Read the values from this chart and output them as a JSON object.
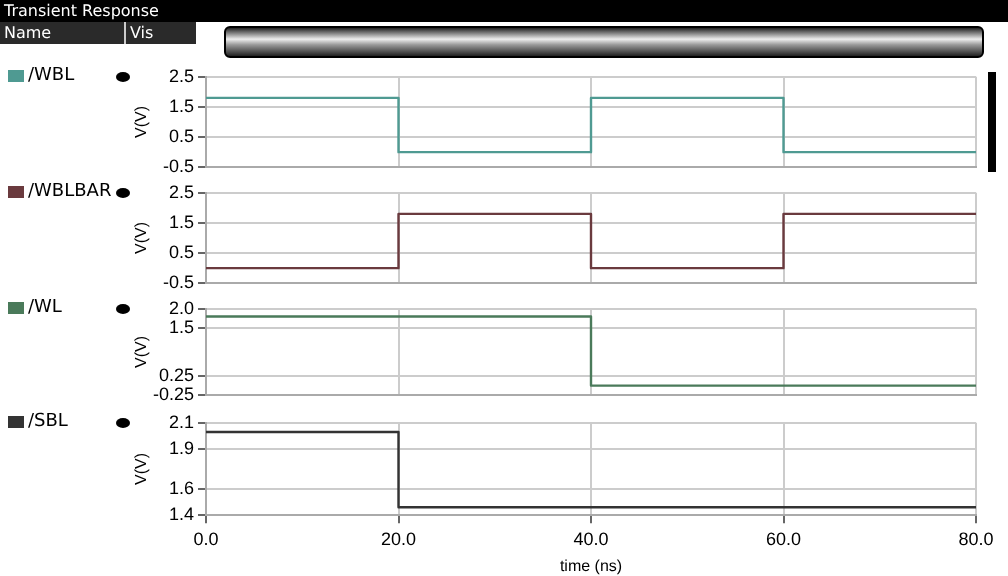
{
  "chart_data": [
    {
      "type": "step",
      "title": "Transient Response",
      "annotations": [
        "Name",
        "Vis"
      ],
      "ylabel": "V(V)",
      "legend": "left",
      "grid": true,
      "tick_labels": "y",
      "x": [
        0,
        20,
        40,
        60,
        80
      ],
      "xlim": [
        0,
        80
      ],
      "xticks": [
        0,
        20,
        40,
        60,
        80
      ],
      "ylim": [
        -0.5,
        2.5
      ],
      "yticks": [
        -0.5,
        0.5,
        1.5,
        2.5
      ],
      "series": [
        {
          "name": "/WBL",
          "color": "#4f9a92",
          "values": [
            1.8,
            0,
            1.8,
            0,
            0
          ]
        }
      ]
    },
    {
      "type": "step",
      "ylabel": "V(V)",
      "legend": "left",
      "grid": true,
      "tick_labels": "y",
      "x": [
        0,
        20,
        40,
        60,
        80
      ],
      "xlim": [
        0,
        80
      ],
      "xticks": [
        0,
        20,
        40,
        60,
        80
      ],
      "ylim": [
        -0.5,
        2.5
      ],
      "yticks": [
        -0.5,
        0.5,
        1.5,
        2.5
      ],
      "series": [
        {
          "name": "/WBLBAR",
          "color": "#6a3a3e",
          "values": [
            0,
            1.8,
            0,
            1.8,
            1.8
          ]
        }
      ]
    },
    {
      "type": "step",
      "ylabel": "V(V)",
      "legend": "left",
      "grid": true,
      "tick_labels": "y",
      "x": [
        0,
        40,
        80
      ],
      "xlim": [
        0,
        80
      ],
      "xticks": [
        0,
        20,
        40,
        60,
        80
      ],
      "ylim": [
        -0.25,
        2.0
      ],
      "yticks": [
        -0.25,
        0.25,
        1.5,
        {
          "value": 2,
          "label": "2.0"
        }
      ],
      "series": [
        {
          "name": "/WL",
          "color": "#4a7a5a",
          "values": [
            1.8,
            0,
            0
          ]
        }
      ]
    },
    {
      "type": "step",
      "ylabel": "V(V)",
      "xlabel": "time (ns)",
      "legend": "left",
      "grid": true,
      "x": [
        0,
        20,
        80
      ],
      "xlim": [
        0,
        80
      ],
      "xticks": [
        {
          "value": 0,
          "label": "0.0"
        },
        {
          "value": 20,
          "label": "20.0"
        },
        {
          "value": 40,
          "label": "40.0"
        },
        {
          "value": 60,
          "label": "60.0"
        },
        {
          "value": 80,
          "label": "80.0"
        }
      ],
      "ylim": [
        1.4,
        2.1
      ],
      "yticks": [
        1.4,
        1.6,
        1.9,
        2.1
      ],
      "series": [
        {
          "name": "/SBL",
          "color": "#333333",
          "values": [
            2.03,
            1.46,
            1.46
          ]
        }
      ]
    }
  ]
}
